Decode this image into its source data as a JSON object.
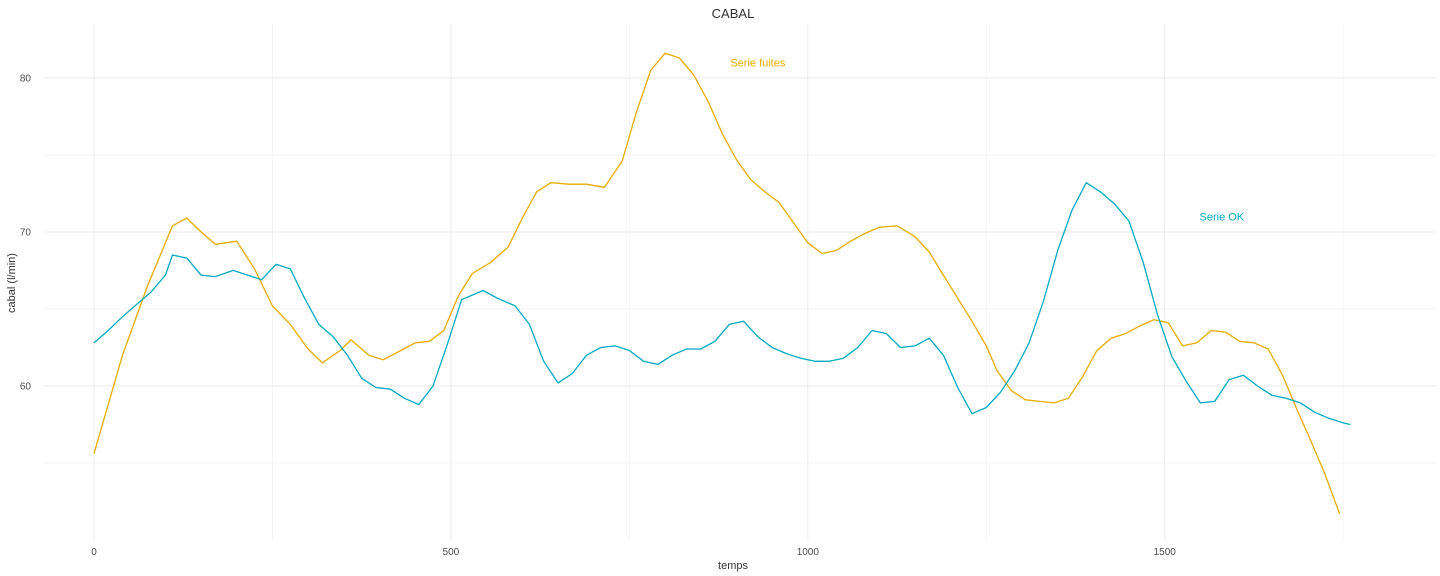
{
  "chart_data": {
    "type": "line",
    "title": "CABAL",
    "xlabel": "temps",
    "ylabel": "cabal (l/min)",
    "xlim": [
      -70,
      1880
    ],
    "ylim": [
      50,
      83.5
    ],
    "x_ticks": [
      0,
      500,
      1000,
      1500
    ],
    "x_tick_labels": [
      "0",
      "500",
      "1000",
      "1500"
    ],
    "x_minor_ticks": [
      250,
      750,
      1250,
      1750
    ],
    "y_ticks": [
      60,
      70,
      80
    ],
    "y_tick_labels": [
      "60",
      "70",
      "80"
    ],
    "y_minor_ticks": [
      55,
      65,
      75
    ],
    "grid": true,
    "legend": "none (direct labels)",
    "series": [
      {
        "name": "Serie fuites",
        "color": "#E6AC00",
        "label_at": [
          930,
          81
        ],
        "points": [
          [
            0,
            55.6
          ],
          [
            40,
            62.0
          ],
          [
            75,
            66.5
          ],
          [
            110,
            70.4
          ],
          [
            130,
            70.9
          ],
          [
            150,
            70.0
          ],
          [
            170,
            69.2
          ],
          [
            200,
            69.4
          ],
          [
            225,
            67.6
          ],
          [
            250,
            65.2
          ],
          [
            275,
            64.0
          ],
          [
            300,
            62.4
          ],
          [
            320,
            61.5
          ],
          [
            345,
            62.3
          ],
          [
            360,
            63.0
          ],
          [
            385,
            62.0
          ],
          [
            405,
            61.7
          ],
          [
            430,
            62.3
          ],
          [
            450,
            62.8
          ],
          [
            470,
            62.9
          ],
          [
            490,
            63.6
          ],
          [
            510,
            65.8
          ],
          [
            530,
            67.3
          ],
          [
            555,
            68.0
          ],
          [
            580,
            69.0
          ],
          [
            600,
            70.9
          ],
          [
            620,
            72.6
          ],
          [
            640,
            73.2
          ],
          [
            665,
            73.1
          ],
          [
            690,
            73.1
          ],
          [
            715,
            72.9
          ],
          [
            740,
            74.6
          ],
          [
            760,
            77.8
          ],
          [
            780,
            80.5
          ],
          [
            800,
            81.6
          ],
          [
            820,
            81.3
          ],
          [
            840,
            80.2
          ],
          [
            860,
            78.5
          ],
          [
            880,
            76.4
          ],
          [
            900,
            74.7
          ],
          [
            920,
            73.4
          ],
          [
            940,
            72.6
          ],
          [
            960,
            71.9
          ],
          [
            980,
            70.6
          ],
          [
            1000,
            69.3
          ],
          [
            1020,
            68.6
          ],
          [
            1040,
            68.8
          ],
          [
            1060,
            69.4
          ],
          [
            1080,
            69.9
          ],
          [
            1100,
            70.3
          ],
          [
            1125,
            70.4
          ],
          [
            1150,
            69.7
          ],
          [
            1170,
            68.7
          ],
          [
            1190,
            67.2
          ],
          [
            1210,
            65.7
          ],
          [
            1230,
            64.2
          ],
          [
            1250,
            62.6
          ],
          [
            1265,
            61.0
          ],
          [
            1285,
            59.7
          ],
          [
            1305,
            59.1
          ],
          [
            1325,
            59.0
          ],
          [
            1345,
            58.9
          ],
          [
            1365,
            59.2
          ],
          [
            1385,
            60.6
          ],
          [
            1405,
            62.3
          ],
          [
            1425,
            63.1
          ],
          [
            1445,
            63.4
          ],
          [
            1465,
            63.9
          ],
          [
            1485,
            64.3
          ],
          [
            1505,
            64.1
          ],
          [
            1525,
            62.6
          ],
          [
            1545,
            62.8
          ],
          [
            1565,
            63.6
          ],
          [
            1585,
            63.5
          ],
          [
            1605,
            62.9
          ],
          [
            1625,
            62.8
          ],
          [
            1645,
            62.4
          ],
          [
            1665,
            60.7
          ],
          [
            1685,
            58.5
          ],
          [
            1705,
            56.4
          ],
          [
            1725,
            54.2
          ],
          [
            1745,
            51.7
          ]
        ]
      },
      {
        "name": "Serie OK",
        "color": "#00A9C2",
        "label_at": [
          1580,
          71
        ],
        "points": [
          [
            0,
            62.8
          ],
          [
            20,
            63.6
          ],
          [
            40,
            64.5
          ],
          [
            60,
            65.3
          ],
          [
            80,
            66.1
          ],
          [
            100,
            67.2
          ],
          [
            110,
            68.5
          ],
          [
            130,
            68.3
          ],
          [
            150,
            67.2
          ],
          [
            170,
            67.1
          ],
          [
            195,
            67.5
          ],
          [
            215,
            67.2
          ],
          [
            235,
            66.9
          ],
          [
            255,
            67.9
          ],
          [
            275,
            67.6
          ],
          [
            295,
            65.7
          ],
          [
            315,
            64.0
          ],
          [
            335,
            63.2
          ],
          [
            355,
            62.0
          ],
          [
            375,
            60.5
          ],
          [
            395,
            59.9
          ],
          [
            415,
            59.8
          ],
          [
            435,
            59.2
          ],
          [
            455,
            58.8
          ],
          [
            475,
            60.0
          ],
          [
            495,
            62.7
          ],
          [
            515,
            65.6
          ],
          [
            545,
            66.2
          ],
          [
            565,
            65.7
          ],
          [
            590,
            65.2
          ],
          [
            610,
            64.0
          ],
          [
            630,
            61.6
          ],
          [
            650,
            60.2
          ],
          [
            670,
            60.8
          ],
          [
            690,
            62.0
          ],
          [
            710,
            62.5
          ],
          [
            730,
            62.6
          ],
          [
            750,
            62.3
          ],
          [
            770,
            61.6
          ],
          [
            790,
            61.4
          ],
          [
            810,
            62.0
          ],
          [
            830,
            62.4
          ],
          [
            850,
            62.4
          ],
          [
            870,
            62.9
          ],
          [
            890,
            64.0
          ],
          [
            910,
            64.2
          ],
          [
            930,
            63.2
          ],
          [
            950,
            62.5
          ],
          [
            970,
            62.1
          ],
          [
            990,
            61.8
          ],
          [
            1010,
            61.6
          ],
          [
            1030,
            61.6
          ],
          [
            1050,
            61.8
          ],
          [
            1070,
            62.5
          ],
          [
            1090,
            63.6
          ],
          [
            1110,
            63.4
          ],
          [
            1130,
            62.5
          ],
          [
            1150,
            62.6
          ],
          [
            1170,
            63.1
          ],
          [
            1190,
            62.0
          ],
          [
            1210,
            59.9
          ],
          [
            1230,
            58.2
          ],
          [
            1250,
            58.6
          ],
          [
            1270,
            59.6
          ],
          [
            1290,
            61.0
          ],
          [
            1310,
            62.8
          ],
          [
            1330,
            65.5
          ],
          [
            1350,
            68.8
          ],
          [
            1370,
            71.4
          ],
          [
            1390,
            73.2
          ],
          [
            1410,
            72.6
          ],
          [
            1430,
            71.8
          ],
          [
            1450,
            70.7
          ],
          [
            1470,
            68.0
          ],
          [
            1490,
            64.6
          ],
          [
            1510,
            61.9
          ],
          [
            1530,
            60.3
          ],
          [
            1550,
            58.9
          ],
          [
            1570,
            59.0
          ],
          [
            1590,
            60.4
          ],
          [
            1610,
            60.7
          ],
          [
            1630,
            60.0
          ],
          [
            1650,
            59.4
          ],
          [
            1670,
            59.2
          ],
          [
            1690,
            58.9
          ],
          [
            1710,
            58.3
          ],
          [
            1730,
            57.9
          ],
          [
            1750,
            57.6
          ],
          [
            1760,
            57.5
          ]
        ]
      }
    ]
  }
}
